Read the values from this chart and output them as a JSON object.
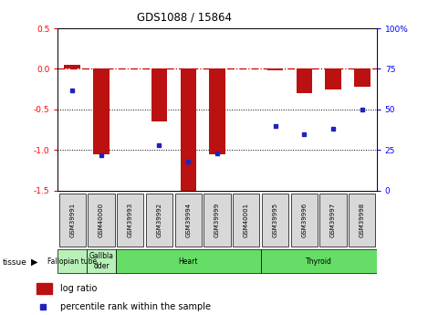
{
  "title": "GDS1088 / 15864",
  "samples": [
    "GSM39991",
    "GSM40000",
    "GSM39993",
    "GSM39992",
    "GSM39994",
    "GSM39999",
    "GSM40001",
    "GSM39995",
    "GSM39996",
    "GSM39997",
    "GSM39998"
  ],
  "log_ratio": [
    0.05,
    -1.05,
    0.0,
    -0.65,
    -1.52,
    -1.05,
    0.0,
    -0.02,
    -0.3,
    -0.25,
    -0.22
  ],
  "percentile_rank": [
    62,
    22,
    null,
    28,
    18,
    23,
    null,
    40,
    35,
    38,
    50
  ],
  "tissues": [
    {
      "label": "Fallopian tube",
      "start": 0,
      "end": 1,
      "color": "#b8f0b8"
    },
    {
      "label": "Gallbla\ndder",
      "start": 1,
      "end": 2,
      "color": "#b8f0b8"
    },
    {
      "label": "Heart",
      "start": 2,
      "end": 7,
      "color": "#66dd66"
    },
    {
      "label": "Thyroid",
      "start": 7,
      "end": 11,
      "color": "#66dd66"
    }
  ],
  "ylim_left": [
    -1.5,
    0.5
  ],
  "ylim_right": [
    0,
    100
  ],
  "yticks_left": [
    -1.5,
    -1.0,
    -0.5,
    0.0,
    0.5
  ],
  "yticks_right": [
    0,
    25,
    50,
    75,
    100
  ],
  "bar_color": "#bb1111",
  "dot_color": "#2222bb",
  "hline_color": "#cc0000",
  "dotted_lines": [
    -0.5,
    -1.0
  ],
  "legend_bar_label": "log ratio",
  "legend_dot_label": "percentile rank within the sample",
  "bg_color": "#ffffff"
}
